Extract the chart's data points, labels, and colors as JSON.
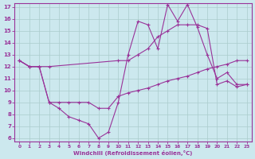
{
  "background_color": "#cce8ee",
  "grid_color": "#aacccc",
  "line_color": "#993399",
  "xlabel": "Windchill (Refroidissement éolien,°C)",
  "xlim": [
    -0.5,
    23.5
  ],
  "ylim": [
    5.7,
    17.3
  ],
  "yticks": [
    6,
    7,
    8,
    9,
    10,
    11,
    12,
    13,
    14,
    15,
    16,
    17
  ],
  "xticks": [
    0,
    1,
    2,
    3,
    4,
    5,
    6,
    7,
    8,
    9,
    10,
    11,
    12,
    13,
    14,
    15,
    16,
    17,
    18,
    19,
    20,
    21,
    22,
    23
  ],
  "line1_x": [
    0,
    1,
    2,
    3,
    4,
    5,
    6,
    7,
    8,
    9,
    10,
    11,
    12,
    13,
    14,
    15,
    16,
    17,
    18,
    19,
    20,
    21,
    22,
    23
  ],
  "line1_y": [
    12.5,
    12.0,
    12.0,
    9.0,
    8.5,
    7.8,
    7.5,
    7.2,
    6.0,
    6.5,
    9.0,
    13.0,
    15.8,
    15.5,
    13.5,
    17.2,
    15.8,
    17.2,
    15.3,
    13.0,
    11.0,
    11.5,
    10.5,
    10.5
  ],
  "line2_x": [
    0,
    1,
    2,
    3,
    10,
    11,
    12,
    13,
    14,
    15,
    16,
    17,
    18,
    19,
    20,
    21,
    22,
    23
  ],
  "line2_y": [
    12.5,
    12.0,
    12.0,
    12.0,
    12.5,
    12.5,
    13.0,
    13.5,
    14.5,
    15.0,
    15.5,
    15.5,
    15.5,
    15.2,
    10.5,
    10.8,
    10.3,
    10.5
  ],
  "line3_x": [
    0,
    1,
    2,
    3,
    4,
    5,
    6,
    7,
    8,
    9,
    10,
    11,
    12,
    13,
    14,
    15,
    16,
    17,
    18,
    19,
    20,
    21,
    22,
    23
  ],
  "line3_y": [
    12.5,
    12.0,
    12.0,
    9.0,
    9.0,
    9.0,
    9.0,
    9.0,
    8.5,
    8.5,
    9.5,
    9.8,
    10.0,
    10.2,
    10.5,
    10.8,
    11.0,
    11.2,
    11.5,
    11.8,
    12.0,
    12.2,
    12.5,
    12.5
  ]
}
